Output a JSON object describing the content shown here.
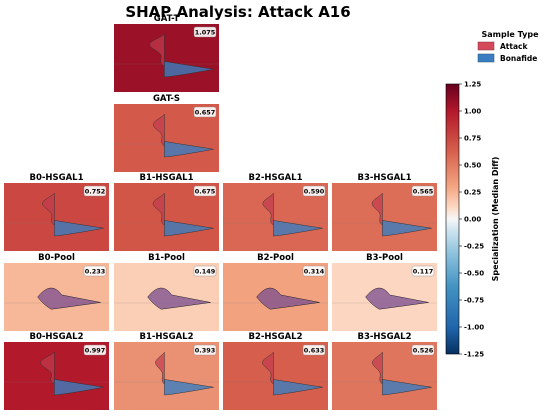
{
  "chart_data": {
    "type": "violin-grid",
    "title": "SHAP Analysis: Attack A16",
    "legend": {
      "title": "Sample Type",
      "placement": "top-right",
      "entries": [
        {
          "name": "Attack",
          "color": "#d3495a"
        },
        {
          "name": "Bonafide",
          "color": "#3a7dc0"
        }
      ]
    },
    "colorbar": {
      "label": "Specialization (Median Diff)",
      "range": [
        -1.25,
        1.25
      ],
      "ticks": [
        "1.25",
        "1.00",
        "0.75",
        "0.50",
        "0.25",
        "0.00",
        "-0.25",
        "-0.50",
        "-0.75",
        "-1.00",
        "-1.25"
      ],
      "colormap": "RdBu_r"
    },
    "panels": [
      {
        "label": "GAT-T",
        "value": 1.075,
        "value_text": "1.075",
        "row": 0,
        "col": 1
      },
      {
        "label": "GAT-S",
        "value": 0.657,
        "value_text": "0.657",
        "row": 1,
        "col": 1
      },
      {
        "label": "B0-HSGAL1",
        "value": 0.752,
        "value_text": "0.752",
        "row": 2,
        "col": 0
      },
      {
        "label": "B1-HSGAL1",
        "value": 0.675,
        "value_text": "0.675",
        "row": 2,
        "col": 1
      },
      {
        "label": "B2-HSGAL1",
        "value": 0.59,
        "value_text": "0.590",
        "row": 2,
        "col": 2
      },
      {
        "label": "B3-HSGAL1",
        "value": 0.565,
        "value_text": "0.565",
        "row": 2,
        "col": 3
      },
      {
        "label": "B0-Pool",
        "value": 0.233,
        "value_text": "0.233",
        "row": 3,
        "col": 0
      },
      {
        "label": "B1-Pool",
        "value": 0.149,
        "value_text": "0.149",
        "row": 3,
        "col": 1
      },
      {
        "label": "B2-Pool",
        "value": 0.314,
        "value_text": "0.314",
        "row": 3,
        "col": 2
      },
      {
        "label": "B3-Pool",
        "value": 0.117,
        "value_text": "0.117",
        "row": 3,
        "col": 3
      },
      {
        "label": "B0-HSGAL2",
        "value": 0.997,
        "value_text": "0.997",
        "row": 4,
        "col": 0
      },
      {
        "label": "B1-HSGAL2",
        "value": 0.393,
        "value_text": "0.393",
        "row": 4,
        "col": 1
      },
      {
        "label": "B2-HSGAL2",
        "value": 0.633,
        "value_text": "0.633",
        "row": 4,
        "col": 2
      },
      {
        "label": "B3-HSGAL2",
        "value": 0.526,
        "value_text": "0.526",
        "row": 4,
        "col": 3
      }
    ]
  }
}
